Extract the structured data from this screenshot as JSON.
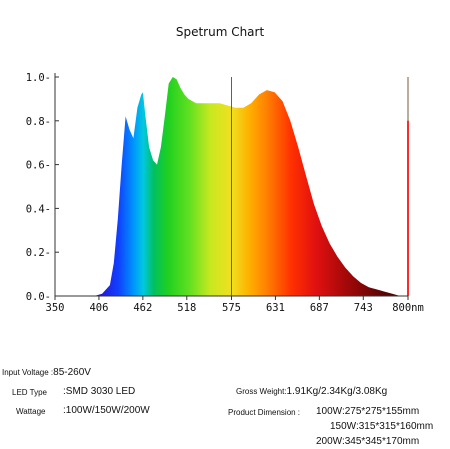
{
  "chart_data": {
    "type": "area",
    "title": "Spetrum Chart",
    "xlabel": "",
    "ylabel": "",
    "x_unit": "nm",
    "xlim": [
      350,
      800
    ],
    "ylim": [
      0,
      1.0
    ],
    "x_ticks": [
      350,
      406,
      462,
      518,
      575,
      631,
      687,
      743,
      800
    ],
    "y_ticks": [
      0.0,
      0.2,
      0.4,
      0.6,
      0.8,
      1.0
    ],
    "y_tick_labels": [
      "0.0",
      "0.2",
      "0.4",
      "0.6",
      "0.8",
      "1.0"
    ],
    "grid": false,
    "fill": "wavelength-colored gradient",
    "series": [
      {
        "x": [
          380,
          400,
          410,
          420,
          425,
          430,
          435,
          440,
          445,
          450,
          455,
          460,
          462,
          465,
          470,
          475,
          480,
          485,
          490,
          495,
          500,
          505,
          510,
          515,
          520,
          525,
          530,
          540,
          550,
          560,
          570,
          580,
          590,
          600,
          610,
          620,
          630,
          640,
          650,
          660,
          670,
          680,
          690,
          700,
          710,
          720,
          730,
          740,
          750,
          760,
          770,
          780,
          790,
          800
        ],
        "y": [
          0.0,
          0.0,
          0.01,
          0.05,
          0.15,
          0.35,
          0.6,
          0.82,
          0.76,
          0.72,
          0.86,
          0.92,
          0.93,
          0.83,
          0.68,
          0.62,
          0.6,
          0.68,
          0.82,
          0.97,
          1.0,
          0.99,
          0.95,
          0.92,
          0.9,
          0.89,
          0.88,
          0.88,
          0.88,
          0.88,
          0.87,
          0.86,
          0.86,
          0.88,
          0.92,
          0.94,
          0.93,
          0.89,
          0.8,
          0.68,
          0.55,
          0.42,
          0.32,
          0.24,
          0.18,
          0.13,
          0.09,
          0.06,
          0.04,
          0.03,
          0.02,
          0.01,
          0.0,
          0.0
        ]
      }
    ],
    "markers": [
      {
        "x": 575,
        "y_top": 1.0,
        "color": "#c04010"
      },
      {
        "x": 800,
        "y_top": 1.0,
        "color": "#7a5a3a"
      },
      {
        "x": 800,
        "y_top": 0.8,
        "color": "#ff2a2a"
      }
    ]
  },
  "specs": {
    "input_voltage_label": "Input Voltage :",
    "input_voltage_value": "85-260V",
    "led_type_label": "LED Type",
    "led_type_value": ":SMD 3030 LED",
    "wattage_label": "Wattage",
    "wattage_value": ":100W/150W/200W",
    "gross_weight_label": "Gross Weight:",
    "gross_weight_value": "1.91Kg/2.34Kg/3.08Kg",
    "product_dimension_label": "Product Dimension :",
    "product_dimension_lines": [
      "100W:275*275*155mm",
      "150W:315*315*160mm",
      "200W:345*345*170mm"
    ]
  },
  "colors": {
    "axis": "#333333",
    "text": "#111111",
    "background": "#ffffff"
  }
}
